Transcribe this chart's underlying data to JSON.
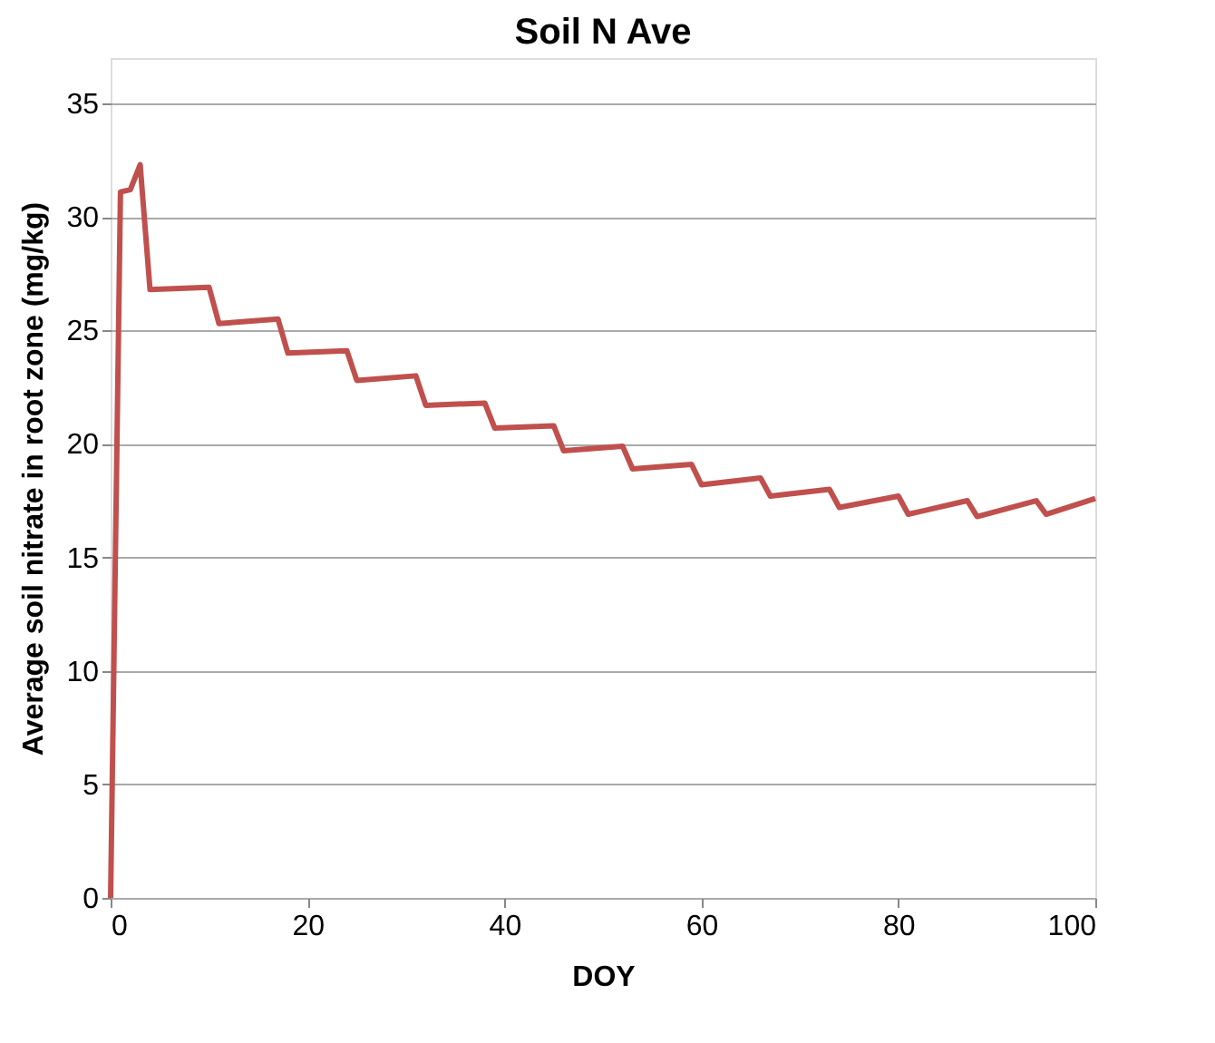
{
  "chart_data": {
    "type": "line",
    "title": "Soil N Ave",
    "xlabel": "DOY",
    "ylabel": "Average soil nitrate in root zone  (mg/kg)",
    "xlim": [
      0,
      100
    ],
    "xticks": [
      0,
      20,
      40,
      60,
      80,
      100
    ],
    "ylim": [
      0,
      37
    ],
    "yticks": [
      0,
      5,
      10,
      15,
      20,
      25,
      30,
      35
    ],
    "grid": "y",
    "marker": "none",
    "line_style": "solid",
    "series": [
      {
        "color": "#c0504d",
        "x": [
          0,
          1,
          2,
          3,
          4,
          10,
          11,
          17,
          18,
          24,
          25,
          31,
          32,
          38,
          39,
          45,
          46,
          52,
          53,
          59,
          60,
          66,
          67,
          73,
          74,
          80,
          81,
          87,
          88,
          94,
          95,
          100
        ],
        "values": [
          0,
          31.1,
          31.2,
          32.3,
          26.8,
          26.9,
          25.3,
          25.5,
          24.0,
          24.1,
          22.8,
          23.0,
          21.7,
          21.8,
          20.7,
          20.8,
          19.7,
          19.9,
          18.9,
          19.1,
          18.2,
          18.5,
          17.7,
          18.0,
          17.2,
          17.7,
          16.9,
          17.5,
          16.8,
          17.5,
          16.9,
          17.6
        ]
      }
    ]
  }
}
